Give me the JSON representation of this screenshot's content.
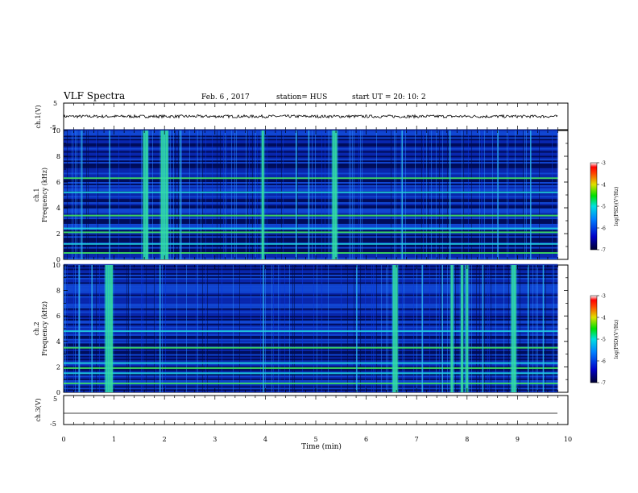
{
  "header": {
    "title": "VLF Spectra",
    "date": "Feb. 6 , 2017",
    "station": "station= HUS",
    "start": "start UT =  20: 10: 2"
  },
  "chart_data": [
    {
      "type": "line",
      "panel": "ch1-waveform",
      "ylabel": "ch.1(V)",
      "yticks": [
        "5",
        "-5"
      ],
      "ylim": [
        -5,
        5
      ],
      "xlim": [
        0,
        10
      ],
      "series": [
        {
          "x": [
            0,
            9.8
          ],
          "y": [
            0,
            0
          ]
        }
      ],
      "note": "noise band ~±0.5 V around 0"
    },
    {
      "type": "heatmap",
      "panel": "ch1-spectrogram",
      "ylabel": "ch.1\nFrequency (kHz)",
      "yticks": [
        "0",
        "2",
        "4",
        "6",
        "8",
        "10"
      ],
      "ylim": [
        0,
        10
      ],
      "xlim": [
        0,
        9.8
      ],
      "colorbar": {
        "label": "log(PSD)(V²/Hz)",
        "ticks": [
          "-3",
          "-4",
          "-5",
          "-6",
          "-7"
        ],
        "range": [
          -7,
          -3
        ]
      },
      "hlines_khz": [
        0.5,
        1.2,
        2.1,
        2.4,
        3.4,
        5.2,
        6.3
      ],
      "bursts_min": [
        1.6,
        1.65,
        1.95,
        2.0,
        2.05,
        3.95,
        5.35,
        5.4
      ],
      "burst_lines_min": [
        0.35,
        0.9,
        2.3,
        4.6,
        4.85,
        6.7,
        7.65,
        8.6,
        9.25
      ]
    },
    {
      "type": "heatmap",
      "panel": "ch2-spectrogram",
      "ylabel": "ch.2\nFrequency (kHz)",
      "yticks": [
        "0",
        "2",
        "4",
        "6",
        "8",
        "10"
      ],
      "ylim": [
        0,
        10
      ],
      "xlim": [
        0,
        9.8
      ],
      "colorbar": {
        "label": "log(PSD)(V²/Hz)",
        "ticks": [
          "-3",
          "-4",
          "-5",
          "-6",
          "-7"
        ],
        "range": [
          -7,
          -3
        ]
      },
      "hlines_khz": [
        0.7,
        1.5,
        1.9,
        2.3,
        3.5,
        4.8
      ],
      "bursts_min": [
        0.85,
        0.9,
        0.95,
        6.55,
        6.6,
        7.7,
        7.9,
        8.0,
        8.9,
        8.95
      ],
      "burst_lines_min": [
        0.3,
        0.55,
        1.9,
        3.95,
        5.8,
        7.1,
        7.5,
        8.3,
        9.2,
        9.5
      ]
    },
    {
      "type": "line",
      "panel": "ch3-waveform",
      "ylabel": "ch.3(V)",
      "yticks": [
        "5",
        "-5"
      ],
      "ylim": [
        -5,
        5
      ],
      "xlim": [
        0,
        10
      ],
      "series": [
        {
          "x": [
            0,
            9.8
          ],
          "y": [
            -2.2,
            -2.2
          ]
        }
      ]
    }
  ],
  "xaxis": {
    "label": "Time (min)",
    "ticks": [
      "0",
      "1",
      "2",
      "3",
      "4",
      "5",
      "6",
      "7",
      "8",
      "9",
      "10"
    ]
  }
}
